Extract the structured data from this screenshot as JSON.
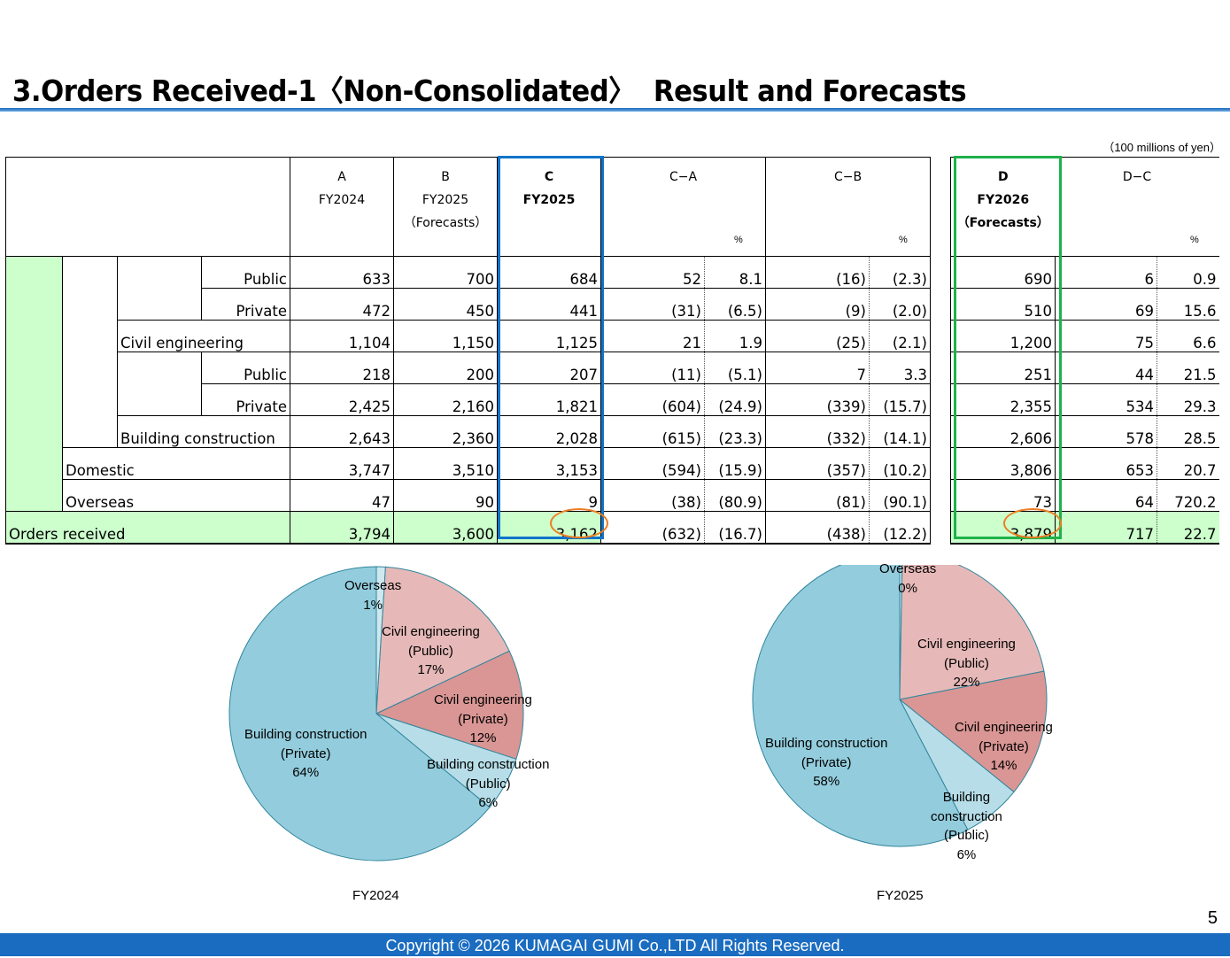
{
  "title": "3.Orders Received-1〈Non-Consolidated〉  Result and Forecasts",
  "units": "（100 millions of yen）",
  "columns": {
    "a": {
      "letter": "A",
      "year": "FY2024",
      "note": ""
    },
    "b": {
      "letter": "B",
      "year": "FY2025",
      "note": "（Forecasts）"
    },
    "c": {
      "letter": "C",
      "year": "FY2025",
      "note": ""
    },
    "ca": {
      "letter": "C−A",
      "pct": "%"
    },
    "cb": {
      "letter": "C−B",
      "pct": "%"
    },
    "d": {
      "letter": "D",
      "year": "FY2026",
      "note": "（Forecasts）"
    },
    "dc": {
      "letter": "D−C",
      "pct": "%"
    }
  },
  "rows": [
    {
      "label": "Public",
      "a": "633",
      "b": "700",
      "c": "684",
      "ca": "52",
      "ca_pct": "8.1",
      "cb": "(16)",
      "cb_pct": "(2.3)",
      "d": "690",
      "dc": "6",
      "dc_pct": "0.9"
    },
    {
      "label": "Private",
      "a": "472",
      "b": "450",
      "c": "441",
      "ca": "(31)",
      "ca_pct": "(6.5)",
      "cb": "(9)",
      "cb_pct": "(2.0)",
      "d": "510",
      "dc": "69",
      "dc_pct": "15.6"
    },
    {
      "label": "Civil engineering",
      "a": "1,104",
      "b": "1,150",
      "c": "1,125",
      "ca": "21",
      "ca_pct": "1.9",
      "cb": "(25)",
      "cb_pct": "(2.1)",
      "d": "1,200",
      "dc": "75",
      "dc_pct": "6.6"
    },
    {
      "label": "Public",
      "a": "218",
      "b": "200",
      "c": "207",
      "ca": "(11)",
      "ca_pct": "(5.1)",
      "cb": "7",
      "cb_pct": "3.3",
      "d": "251",
      "dc": "44",
      "dc_pct": "21.5"
    },
    {
      "label": "Private",
      "a": "2,425",
      "b": "2,160",
      "c": "1,821",
      "ca": "(604)",
      "ca_pct": "(24.9)",
      "cb": "(339)",
      "cb_pct": "(15.7)",
      "d": "2,355",
      "dc": "534",
      "dc_pct": "29.3"
    },
    {
      "label": "Building construction",
      "a": "2,643",
      "b": "2,360",
      "c": "2,028",
      "ca": "(615)",
      "ca_pct": "(23.3)",
      "cb": "(332)",
      "cb_pct": "(14.1)",
      "d": "2,606",
      "dc": "578",
      "dc_pct": "28.5"
    },
    {
      "label": "Domestic",
      "a": "3,747",
      "b": "3,510",
      "c": "3,153",
      "ca": "(594)",
      "ca_pct": "(15.9)",
      "cb": "(357)",
      "cb_pct": "(10.2)",
      "d": "3,806",
      "dc": "653",
      "dc_pct": "20.7"
    },
    {
      "label": "Overseas",
      "a": "47",
      "b": "90",
      "c": "9",
      "ca": "(38)",
      "ca_pct": "(80.9)",
      "cb": "(81)",
      "cb_pct": "(90.1)",
      "d": "73",
      "dc": "64",
      "dc_pct": "720.2"
    },
    {
      "label": "Orders received",
      "a": "3,794",
      "b": "3,600",
      "c": "3,162",
      "ca": "(632)",
      "ca_pct": "(16.7)",
      "cb": "(438)",
      "cb_pct": "(12.2)",
      "d": "3,879",
      "dc": "717",
      "dc_pct": "22.7"
    }
  ],
  "chart_data": [
    {
      "type": "pie",
      "title": "FY2024",
      "slices": [
        {
          "label": "Overseas",
          "value": 1,
          "display": "1%",
          "color": "#cfe8ee"
        },
        {
          "label": "Civil engineering (Public)",
          "value": 17,
          "display": "17%",
          "color": "#e6b9b8"
        },
        {
          "label": "Civil engineering (Private)",
          "value": 12,
          "display": "12%",
          "color": "#d99694"
        },
        {
          "label": "Building construction (Public)",
          "value": 6,
          "display": "6%",
          "color": "#b7dee8"
        },
        {
          "label": "Building construction (Private)",
          "value": 64,
          "display": "64%",
          "color": "#93cddd"
        }
      ],
      "labels": {
        "overseas": [
          "Overseas",
          "1%"
        ],
        "civil_public": [
          "Civil engineering",
          "(Public)",
          "17%"
        ],
        "civil_private": [
          "Civil engineering",
          "(Private)",
          "12%"
        ],
        "build_public": [
          "Building construction",
          "(Public)",
          "6%"
        ],
        "build_private": [
          "Building construction",
          "(Private)",
          "64%"
        ]
      }
    },
    {
      "type": "pie",
      "title": "FY2025",
      "slices": [
        {
          "label": "Overseas",
          "value": 0.3,
          "display": "0%",
          "color": "#cfe8ee"
        },
        {
          "label": "Civil engineering (Public)",
          "value": 21.6,
          "display": "22%",
          "color": "#e6b9b8"
        },
        {
          "label": "Civil engineering (Private)",
          "value": 13.9,
          "display": "14%",
          "color": "#d99694"
        },
        {
          "label": "Building construction (Public)",
          "value": 6.5,
          "display": "6%",
          "color": "#b7dee8"
        },
        {
          "label": "Building construction (Private)",
          "value": 57.6,
          "display": "58%",
          "color": "#93cddd"
        }
      ],
      "labels": {
        "overseas": [
          "Overseas",
          "0%"
        ],
        "civil_public": [
          "Civil engineering",
          "(Public)",
          "22%"
        ],
        "civil_private": [
          "Civil engineering",
          "(Private)",
          "14%"
        ],
        "build_public": [
          "Building",
          "construction",
          "(Public)",
          "6%"
        ],
        "build_private": [
          "Building construction",
          "(Private)",
          "58%"
        ]
      }
    }
  ],
  "page_number": "5",
  "footer": "Copyright © 2026 KUMAGAI  GUMI Co.,LTD All Rights Reserved."
}
